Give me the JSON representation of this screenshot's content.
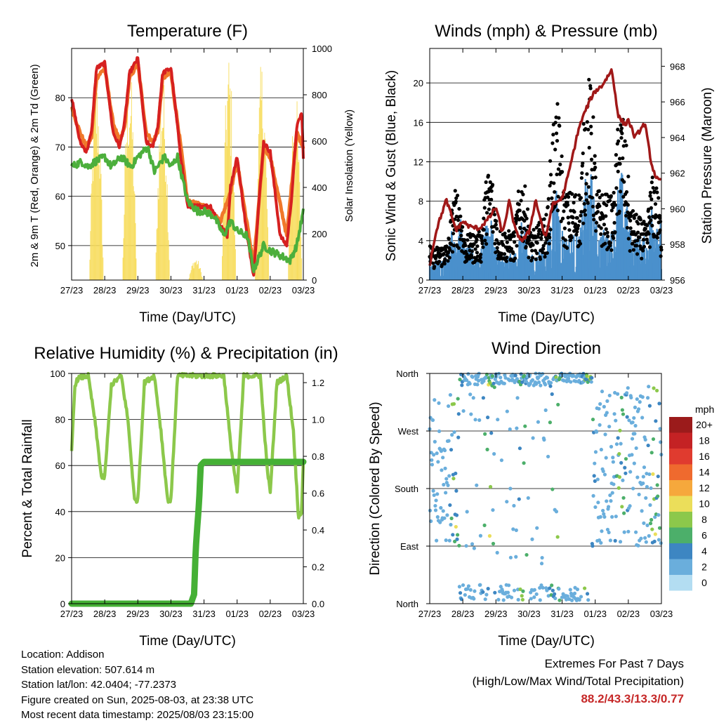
{
  "colors": {
    "temperature_2m": "#d62020",
    "temperature_9m": "#f0782a",
    "dewpoint": "#4caf3c",
    "solar": "#f7dc5a",
    "wind": "#4a90cc",
    "gust": "#000000",
    "pressure": "#a01818",
    "rh": "#8cc84b",
    "precip": "#45b035",
    "extremes": "#c62828"
  },
  "x_ticks": [
    "27/23",
    "28/23",
    "29/23",
    "30/23",
    "31/23",
    "01/23",
    "02/23",
    "03/23"
  ],
  "footer": {
    "location": "Location: Addison",
    "elevation": "Station elevation: 507.614 m",
    "latlon": "Station lat/lon: 42.0404; -77.2373",
    "created": "Figure created on Sun, 2025-08-03, at 23:38 UTC",
    "recent": "Most recent data timestamp: 2025/08/03 23:15:00",
    "extremes_title": "Extremes For Past 7 Days",
    "extremes_sub": "(High/Low/Max Wind/Total Precipitation)",
    "extremes_values": "88.2/43.3/13.3/0.77"
  },
  "chart_data": [
    {
      "type": "line",
      "title": "Temperature (F)",
      "xlabel": "Time (Day/UTC)",
      "ylabel": "2m & 9m T (Red, Orange) & 2m Td (Green)",
      "y2label": "Solar Insolation (Yellow)",
      "x_ticks": [
        "27/23",
        "28/23",
        "29/23",
        "30/23",
        "31/23",
        "01/23",
        "02/23",
        "03/23"
      ],
      "y_ticks": [
        50,
        60,
        70,
        80
      ],
      "y2_ticks": [
        0,
        200,
        400,
        600,
        800,
        1000
      ],
      "ylim": [
        43,
        90
      ],
      "y2lim": [
        0,
        1000
      ],
      "grid": true,
      "series": [
        {
          "name": "2m T",
          "x": [
            0,
            0.25,
            0.45,
            0.6,
            0.75,
            1.0,
            1.25,
            1.45,
            1.6,
            1.75,
            2.0,
            2.25,
            2.45,
            2.6,
            2.75,
            3.0,
            3.3,
            3.5,
            3.7,
            3.85,
            4.0,
            4.2,
            4.5,
            4.7,
            4.8,
            5.0,
            5.3,
            5.5,
            5.65,
            5.8,
            6.0,
            6.3,
            6.5,
            6.65,
            6.8,
            6.95,
            7.0
          ],
          "y": [
            80,
            71,
            69,
            73,
            86,
            87,
            73,
            70,
            75,
            85,
            88,
            71,
            70,
            74,
            85,
            86,
            68,
            58,
            58,
            58,
            58,
            58,
            54,
            52,
            62,
            68,
            52,
            44,
            58,
            71,
            69,
            52,
            50,
            60,
            74,
            77,
            68
          ]
        },
        {
          "name": "9m T",
          "x": [
            0,
            0.25,
            0.45,
            0.6,
            0.75,
            1.0,
            1.25,
            1.45,
            1.6,
            1.75,
            2.0,
            2.25,
            2.45,
            2.6,
            2.75,
            3.0,
            3.3,
            3.5,
            4.0,
            4.5,
            4.8,
            5.0,
            5.5,
            5.8,
            6.0,
            6.5,
            6.8,
            7.0
          ],
          "y": [
            78,
            73,
            70,
            72,
            84,
            86,
            75,
            71,
            74,
            84,
            87,
            73,
            71,
            73,
            84,
            85,
            70,
            59,
            58,
            55,
            61,
            67,
            46,
            70,
            68,
            52,
            73,
            70
          ]
        },
        {
          "name": "2m Td",
          "x": [
            0,
            0.3,
            0.5,
            0.7,
            1.0,
            1.2,
            1.5,
            1.8,
            2.0,
            2.3,
            2.5,
            2.8,
            3.0,
            3.2,
            3.5,
            3.8,
            4.0,
            4.3,
            4.6,
            4.8,
            5.0,
            5.3,
            5.5,
            5.8,
            6.0,
            6.3,
            6.6,
            6.8,
            7.0
          ],
          "y": [
            66,
            67,
            66,
            67,
            68,
            66,
            68,
            66,
            68,
            70,
            65,
            68,
            66,
            68,
            59,
            57,
            57,
            56,
            52,
            55,
            53,
            52,
            45,
            50,
            49,
            48,
            47,
            50,
            57
          ]
        }
      ],
      "solar_peaks": [
        {
          "day": 0.75,
          "value": 900
        },
        {
          "day": 1.75,
          "value": 950
        },
        {
          "day": 2.75,
          "value": 900
        },
        {
          "day": 3.75,
          "value": 100
        },
        {
          "day": 4.75,
          "value": 1000
        },
        {
          "day": 5.75,
          "value": 960
        },
        {
          "day": 6.75,
          "value": 860
        }
      ]
    },
    {
      "type": "scatter",
      "title": "Winds (mph) & Pressure (mb)",
      "xlabel": "Time (Day/UTC)",
      "ylabel": "Sonic Wind & Gust (Blue, Black)",
      "y2label": "Station Pressure (Maroon)",
      "x_ticks": [
        "27/23",
        "28/23",
        "29/23",
        "30/23",
        "31/23",
        "01/23",
        "02/23",
        "03/23"
      ],
      "y_ticks": [
        0,
        4,
        8,
        12,
        16,
        20
      ],
      "y2_ticks": [
        956,
        958,
        960,
        962,
        964,
        966,
        968
      ],
      "ylim": [
        0,
        23.5
      ],
      "y2lim": [
        956,
        969
      ],
      "grid": true,
      "wind_peak_mph": [
        4,
        8,
        6,
        6,
        10,
        12,
        11,
        9
      ],
      "gust_peak_mph": [
        7,
        10,
        12,
        10,
        20,
        21,
        17,
        9
      ],
      "pressure": {
        "name": "Station Pressure",
        "x": [
          0,
          0.2,
          0.5,
          0.8,
          1.0,
          1.2,
          1.5,
          1.8,
          2.0,
          2.2,
          2.4,
          2.6,
          2.8,
          3.0,
          3.2,
          3.5,
          3.7,
          4.0,
          4.2,
          4.5,
          4.7,
          4.9,
          5.0,
          5.2,
          5.5,
          5.7,
          5.9,
          6.0,
          6.2,
          6.5,
          6.7,
          6.85,
          7.0
        ],
        "y": [
          956.9,
          958.8,
          960.5,
          958.8,
          959.3,
          959.0,
          958.9,
          959.5,
          960.1,
          958.6,
          960.4,
          958.7,
          958.2,
          958.7,
          960.5,
          958.3,
          960.2,
          960.6,
          962.0,
          964.5,
          965.5,
          966.3,
          966.6,
          966.9,
          967.8,
          965.2,
          964.7,
          965.0,
          964.0,
          964.8,
          962.5,
          961.7,
          961.5
        ]
      }
    },
    {
      "type": "line",
      "title": "Relative Humidity (%) & Precipitation (in)",
      "xlabel": "Time (Day/UTC)",
      "ylabel": "Percent & Total Rainfall",
      "x_ticks": [
        "27/23",
        "28/23",
        "29/23",
        "30/23",
        "31/23",
        "01/23",
        "02/23",
        "03/23"
      ],
      "y_ticks": [
        0,
        20,
        40,
        60,
        80,
        100
      ],
      "y2_ticks": [
        0.0,
        0.2,
        0.4,
        0.6,
        0.8,
        1.0,
        1.2
      ],
      "ylim": [
        0,
        100
      ],
      "y2lim": [
        0,
        1.25
      ],
      "grid": true,
      "series": [
        {
          "name": "RH",
          "x": [
            0,
            0.1,
            0.2,
            0.5,
            0.7,
            0.9,
            1.0,
            1.2,
            1.5,
            1.7,
            1.9,
            2.0,
            2.2,
            2.5,
            2.7,
            2.9,
            3.0,
            3.2,
            3.5,
            3.8,
            4.0,
            4.3,
            4.6,
            4.8,
            5.0,
            5.2,
            5.5,
            5.7,
            5.9,
            6.0,
            6.2,
            6.5,
            6.7,
            6.85,
            6.95,
            7.0
          ],
          "y": [
            66,
            95,
            98,
            99,
            80,
            55,
            55,
            95,
            99,
            80,
            45,
            45,
            96,
            99,
            75,
            45,
            45,
            99,
            99,
            99,
            99,
            99,
            99,
            70,
            48,
            99,
            99,
            99,
            60,
            48,
            96,
            99,
            75,
            38,
            40,
            62
          ]
        },
        {
          "name": "Precip",
          "x": [
            0,
            3.6,
            3.7,
            3.75,
            3.85,
            3.9,
            4.0,
            5.0,
            6.0,
            7.0
          ],
          "y": [
            0,
            0,
            0.05,
            0.3,
            0.55,
            0.75,
            0.77,
            0.77,
            0.77,
            0.77
          ]
        }
      ]
    },
    {
      "type": "scatter",
      "title": "Wind Direction",
      "xlabel": "Time (Day/UTC)",
      "ylabel": "Direction (Colored By Speed)",
      "x_ticks": [
        "27/23",
        "28/23",
        "29/23",
        "30/23",
        "31/23",
        "01/23",
        "02/23",
        "03/23"
      ],
      "y_ticks": [
        "North",
        "East",
        "South",
        "West",
        "North"
      ],
      "ylim": [
        0,
        360
      ],
      "colorbar": {
        "title": "mph",
        "labels": [
          "20+",
          "18",
          "16",
          "14",
          "12",
          "10",
          "8",
          "6",
          "4",
          "2",
          "0"
        ],
        "colors": [
          "#9b1b1b",
          "#c42224",
          "#e03b2f",
          "#ef6a2e",
          "#f6a83c",
          "#ebde5a",
          "#8cc84b",
          "#4caf6a",
          "#3d86c2",
          "#6aaedc",
          "#b3ddf2"
        ]
      }
    }
  ]
}
